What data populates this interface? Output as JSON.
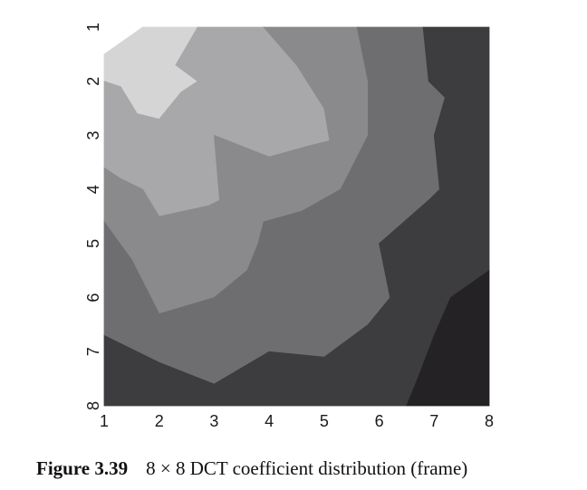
{
  "chart_data": {
    "type": "heatmap",
    "title": "",
    "xlabel": "",
    "ylabel": "",
    "x_ticks": [
      "1",
      "2",
      "3",
      "4",
      "5",
      "6",
      "7",
      "8"
    ],
    "y_ticks": [
      "1",
      "2",
      "3",
      "4",
      "5",
      "6",
      "7",
      "8"
    ],
    "xlim": [
      1,
      8
    ],
    "ylim": [
      1,
      8
    ],
    "y_axis_direction": "top-to-bottom",
    "grid": false,
    "contour_levels": [
      {
        "level": 1,
        "color": "#d5d5d5",
        "region": [
          [
            1.7,
            1
          ],
          [
            2.7,
            1
          ],
          [
            2.3,
            1.7
          ],
          [
            2.7,
            2
          ],
          [
            2.4,
            2.2
          ],
          [
            2,
            2.7
          ],
          [
            1.6,
            2.6
          ],
          [
            1.3,
            2.1
          ],
          [
            1,
            2
          ],
          [
            1,
            1.5
          ]
        ]
      },
      {
        "level": 2,
        "color": "#a8a8aa",
        "region": [
          [
            2.7,
            1
          ],
          [
            3.9,
            1
          ],
          [
            4.5,
            1.7
          ],
          [
            5,
            2.5
          ],
          [
            5.1,
            3.1
          ],
          [
            4.7,
            3.2
          ],
          [
            4,
            3.4
          ],
          [
            3,
            3
          ],
          [
            3.1,
            4.2
          ],
          [
            2.9,
            4.3
          ],
          [
            2,
            4.5
          ],
          [
            1.7,
            4
          ],
          [
            1.3,
            3.8
          ],
          [
            1,
            3.6
          ],
          [
            1,
            2
          ],
          [
            1.3,
            2.1
          ],
          [
            1.6,
            2.6
          ],
          [
            2,
            2.7
          ],
          [
            2.4,
            2.2
          ],
          [
            2.7,
            2
          ],
          [
            2.3,
            1.7
          ]
        ]
      },
      {
        "level": 3,
        "color": "#8a8a8c",
        "region": [
          [
            3.9,
            1
          ],
          [
            5.6,
            1
          ],
          [
            5.8,
            2
          ],
          [
            5.8,
            3
          ],
          [
            5.3,
            4
          ],
          [
            4.6,
            4.4
          ],
          [
            3.9,
            4.6
          ],
          [
            3.8,
            5
          ],
          [
            3.6,
            5.5
          ],
          [
            3,
            6
          ],
          [
            2,
            6.3
          ],
          [
            1.5,
            5.3
          ],
          [
            1,
            4.6
          ],
          [
            1,
            3.6
          ],
          [
            1.3,
            3.8
          ],
          [
            1.7,
            4
          ],
          [
            2,
            4.5
          ],
          [
            2.9,
            4.3
          ],
          [
            3.1,
            4.2
          ],
          [
            3,
            3
          ],
          [
            4,
            3.4
          ],
          [
            4.7,
            3.2
          ],
          [
            5.1,
            3.1
          ],
          [
            5,
            2.5
          ],
          [
            4.5,
            1.7
          ]
        ]
      },
      {
        "level": 4,
        "color": "#6e6e70",
        "region": [
          [
            5.6,
            1
          ],
          [
            6.8,
            1
          ],
          [
            6.9,
            2
          ],
          [
            7.2,
            2.3
          ],
          [
            7,
            3
          ],
          [
            7.1,
            4
          ],
          [
            6.9,
            4.2
          ],
          [
            6,
            5
          ],
          [
            6.2,
            6
          ],
          [
            5.8,
            6.5
          ],
          [
            5,
            7.1
          ],
          [
            4,
            7
          ],
          [
            3,
            7.6
          ],
          [
            2,
            7.2
          ],
          [
            1,
            6.7
          ],
          [
            1,
            4.6
          ],
          [
            1.5,
            5.3
          ],
          [
            2,
            6.3
          ],
          [
            3,
            6
          ],
          [
            3.6,
            5.5
          ],
          [
            3.8,
            5
          ],
          [
            3.9,
            4.6
          ],
          [
            4.6,
            4.4
          ],
          [
            5.3,
            4
          ],
          [
            5.8,
            3
          ],
          [
            5.8,
            2
          ]
        ]
      },
      {
        "level": 5,
        "color": "#3d3c3f",
        "region": [
          [
            6.8,
            1
          ],
          [
            8,
            1
          ],
          [
            8,
            5.5
          ],
          [
            7.3,
            6
          ],
          [
            7,
            6.7
          ],
          [
            6.7,
            7.5
          ],
          [
            6.5,
            8
          ],
          [
            1,
            8
          ],
          [
            1,
            6.7
          ],
          [
            2,
            7.2
          ],
          [
            3,
            7.6
          ],
          [
            4,
            7
          ],
          [
            5,
            7.1
          ],
          [
            5.8,
            6.5
          ],
          [
            6.2,
            6
          ],
          [
            6,
            5
          ],
          [
            6.9,
            4.2
          ],
          [
            7.1,
            4
          ],
          [
            7,
            3
          ],
          [
            7.2,
            2.3
          ],
          [
            6.9,
            2
          ]
        ]
      },
      {
        "level": 6,
        "color": "#242224",
        "region": [
          [
            8,
            5.5
          ],
          [
            8,
            8
          ],
          [
            6.5,
            8
          ],
          [
            6.7,
            7.5
          ],
          [
            7,
            6.7
          ],
          [
            7.3,
            6
          ]
        ]
      }
    ]
  },
  "caption": {
    "figure_number": "Figure 3.39",
    "text": "8 × 8 DCT coefficient distribution (frame)"
  }
}
